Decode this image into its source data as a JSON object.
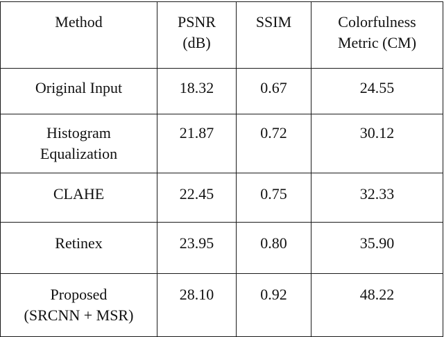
{
  "table": {
    "headers": {
      "method": "Method",
      "psnr": "PSNR\n(dB)",
      "ssim": "SSIM",
      "cm": "Colorfulness\nMetric (CM)"
    },
    "rows": [
      {
        "method": "Original Input",
        "psnr": "18.32",
        "ssim": "0.67",
        "cm": "24.55"
      },
      {
        "method": "Histogram\nEqualization",
        "psnr": "21.87",
        "ssim": "0.72",
        "cm": "30.12"
      },
      {
        "method": "CLAHE",
        "psnr": "22.45",
        "ssim": "0.75",
        "cm": "32.33"
      },
      {
        "method": "Retinex",
        "psnr": "23.95",
        "ssim": "0.80",
        "cm": "35.90"
      },
      {
        "method": "Proposed\n(SRCNN + MSR)",
        "psnr": "28.10",
        "ssim": "0.92",
        "cm": "48.22"
      }
    ]
  }
}
